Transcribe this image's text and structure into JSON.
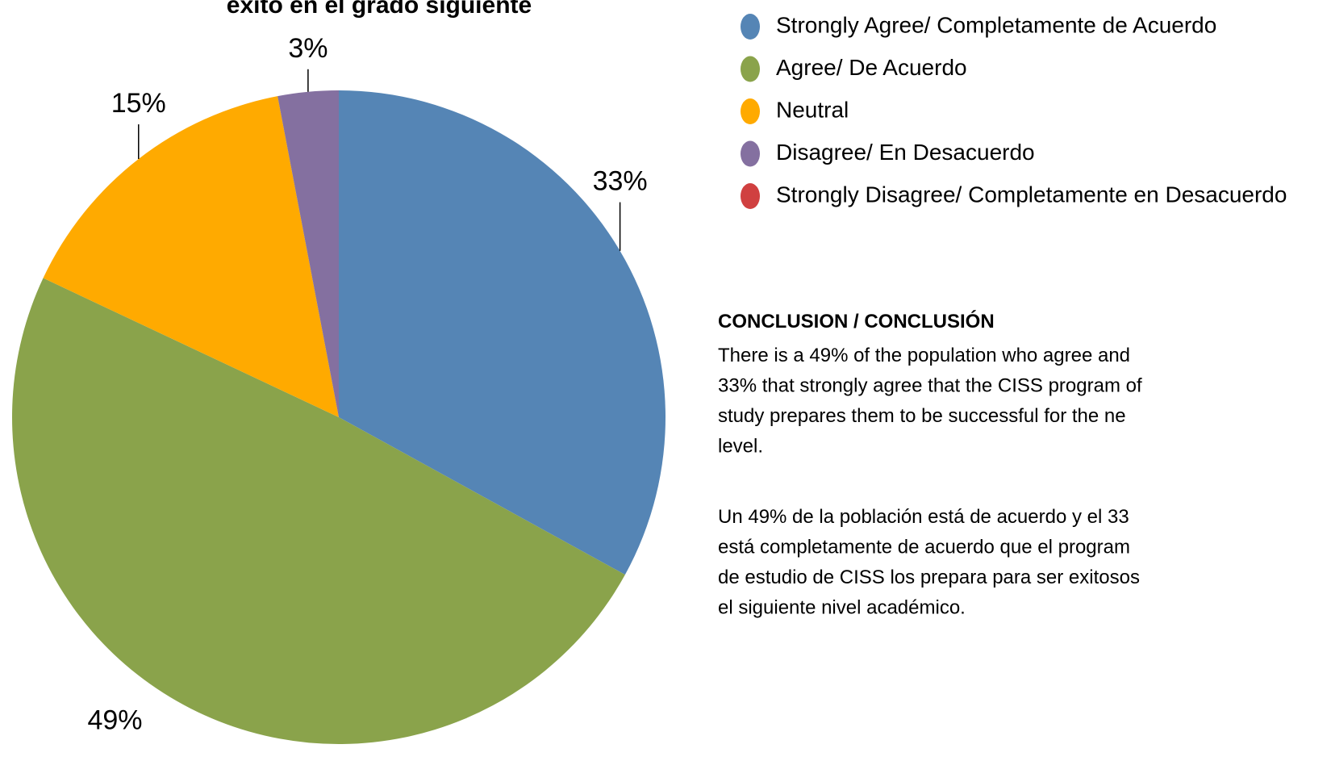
{
  "chart_data": {
    "type": "pie",
    "title": "éxito en el grado siguiente",
    "series": [
      {
        "name": "Strongly Agree/ Completamente de Acuerdo",
        "color": "#5585b5",
        "values": [
          33
        ],
        "value_labels": [
          "33%"
        ]
      },
      {
        "name": "Agree/ De Acuerdo",
        "color": "#8aa34b",
        "values": [
          49
        ],
        "value_labels": [
          "49%"
        ]
      },
      {
        "name": "Neutral",
        "color": "#ffaa00",
        "values": [
          15
        ],
        "value_labels": [
          "15%"
        ]
      },
      {
        "name": "Disagree/ En Desacuerdo",
        "color": "#8470a0",
        "values": [
          3
        ],
        "value_labels": [
          "3%"
        ]
      },
      {
        "name": "Strongly Disagree/ Completamente en Desacuerdo",
        "color": "#d04040",
        "values": [
          0
        ],
        "value_labels": [
          null
        ]
      }
    ],
    "legend": "right"
  },
  "conclusion": {
    "heading": "CONCLUSION / CONCLUSIÓN",
    "paragraphs": [
      [
        "There is a 49% of the population who  agree and",
        "33% that strongly  agree that the CISS  program of",
        "study prepares them to be successful  for the ne",
        "level."
      ],
      [
        "Un 49%  de la población está de acuerdo y el 33",
        "está completamente de acuerdo que el program",
        "de estudio de CISS los prepara para ser exitosos",
        "el siguiente nivel académico."
      ]
    ]
  }
}
